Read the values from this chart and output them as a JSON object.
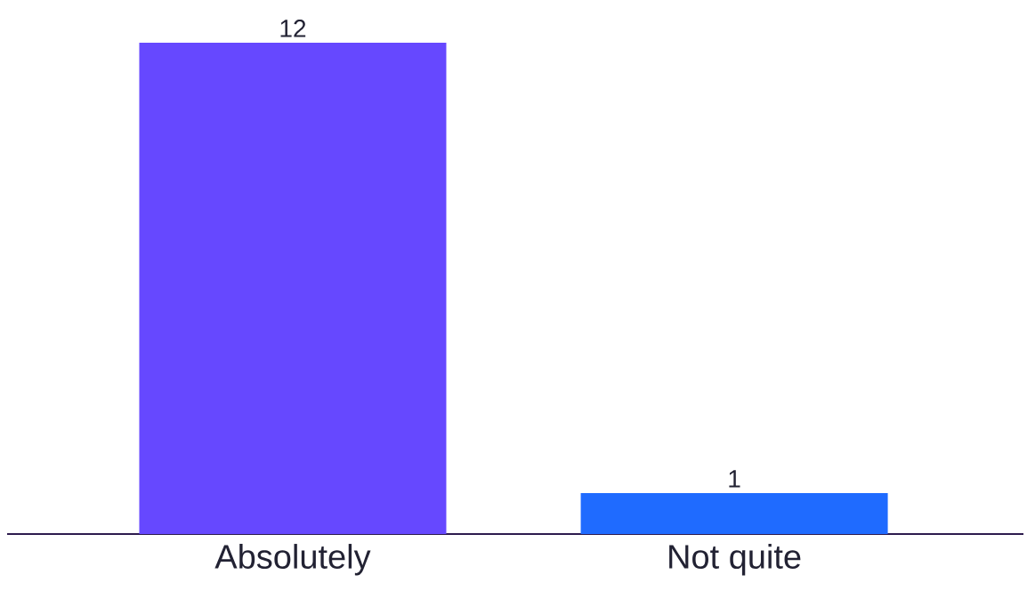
{
  "chart_data": {
    "type": "bar",
    "categories": [
      "Absolutely",
      "Not quite"
    ],
    "values": [
      12,
      1
    ],
    "colors": [
      "#6648ff",
      "#1f6bff"
    ],
    "data_labels": true
  }
}
